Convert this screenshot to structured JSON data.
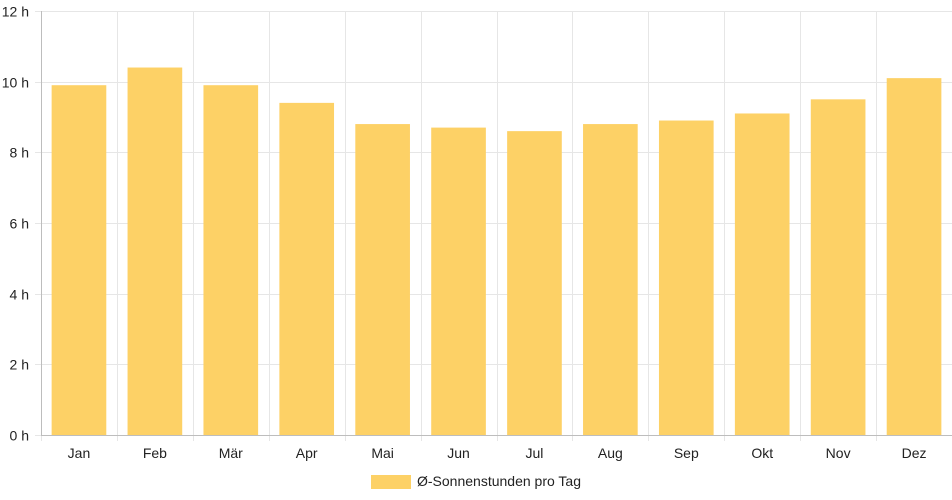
{
  "colors": {
    "bar": "#FDD166",
    "grid": "#e6e6e6",
    "axis": "#bdbdbd",
    "text": "#222222"
  },
  "legend": {
    "label": "Ø-Sonnenstunden pro Tag"
  },
  "chart_data": {
    "type": "bar",
    "categories": [
      "Jan",
      "Feb",
      "Mär",
      "Apr",
      "Mai",
      "Jun",
      "Jul",
      "Aug",
      "Sep",
      "Okt",
      "Nov",
      "Dez"
    ],
    "series": [
      {
        "name": "Ø-Sonnenstunden pro Tag",
        "values": [
          9.9,
          10.4,
          9.9,
          9.4,
          8.8,
          8.7,
          8.6,
          8.8,
          8.9,
          9.1,
          9.5,
          10.1
        ]
      }
    ],
    "ylim": [
      0,
      12
    ],
    "y_ticks": [
      0,
      2,
      4,
      6,
      8,
      10,
      12
    ],
    "y_unit_suffix": " h",
    "grid": true,
    "legend_position": "bottom-center"
  }
}
